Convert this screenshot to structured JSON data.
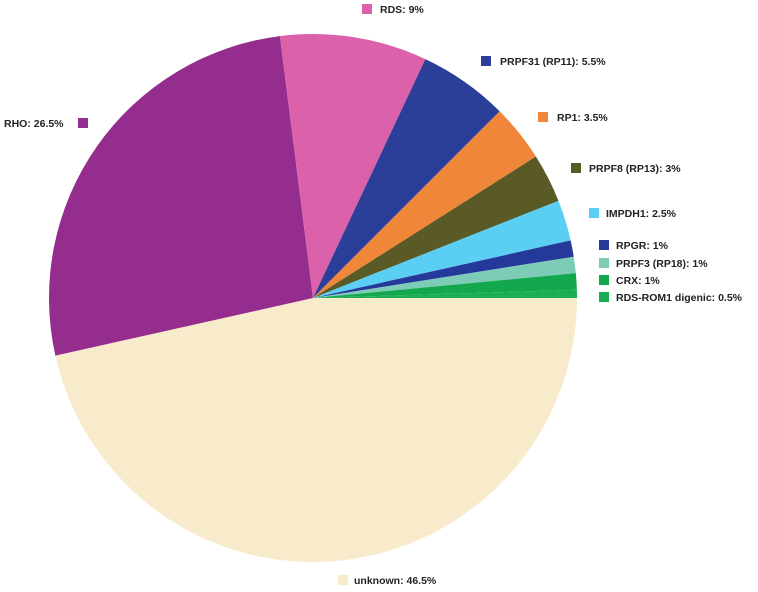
{
  "chart_data": {
    "type": "pie",
    "title": "",
    "slices": [
      {
        "label": "unknown",
        "value": 46.5,
        "color": "#F7EBCB"
      },
      {
        "label": "RHO",
        "value": 26.5,
        "color": "#952D8F"
      },
      {
        "label": "RDS",
        "value": 9,
        "color": "#DB62AA"
      },
      {
        "label": "PRPF31 (RP11)",
        "value": 5.5,
        "color": "#2C3F98"
      },
      {
        "label": "RP1",
        "value": 3.5,
        "color": "#F0863A"
      },
      {
        "label": "PRPF8 (RP13)",
        "value": 3,
        "color": "#5A5A26"
      },
      {
        "label": "IMPDH1",
        "value": 2.5,
        "color": "#5BCFF3"
      },
      {
        "label": "RPGR",
        "value": 1,
        "color": "#25399A"
      },
      {
        "label": "PRPF3 (RP18)",
        "value": 1,
        "color": "#7CCCB8"
      },
      {
        "label": "CRX",
        "value": 1,
        "color": "#13A84E"
      },
      {
        "label": "RDS-ROM1 digenic",
        "value": 0.5,
        "color": "#1BAF54"
      }
    ],
    "label_texts": [
      "unknown:  46.5%",
      "RHO:  26.5%",
      "RDS:  9%",
      "PRPF31 (RP11):  5.5%",
      "RP1:  3.5%",
      "PRPF8 (RP13):  3%",
      "IMPDH1:  2.5%",
      "RPGR:  1%",
      "PRPF3 (RP18):  1%",
      "CRX:  1%",
      "RDS-ROM1 digenic:  0.5%"
    ]
  }
}
